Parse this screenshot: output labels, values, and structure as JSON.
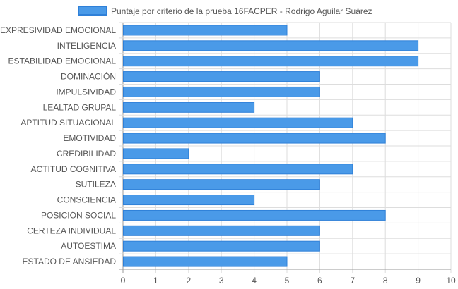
{
  "chart_data": {
    "type": "bar",
    "orientation": "horizontal",
    "legend": {
      "label": "Puntaje por criterio de la prueba 16FACPER - Rodrigo Aguilar Suárez",
      "position": "top"
    },
    "categories": [
      "EXPRESIVIDAD EMOCIONAL",
      "INTELIGENCIA",
      "ESTABILIDAD EMOCIONAL",
      "DOMINACIÓN",
      "IMPULSIVIDAD",
      "LEALTAD GRUPAL",
      "APTITUD SITUACIONAL",
      "EMOTIVIDAD",
      "CREDIBILIDAD",
      "ACTITUD COGNITIVA",
      "SUTILEZA",
      "CONSCIENCIA",
      "POSICIÓN SOCIAL",
      "CERTEZA INDIVIDUAL",
      "AUTOESTIMA",
      "ESTADO DE ANSIEDAD"
    ],
    "values": [
      5,
      9,
      9,
      6,
      6,
      4,
      7,
      8,
      2,
      7,
      6,
      4,
      8,
      6,
      6,
      5
    ],
    "xlim": [
      0,
      10
    ],
    "xticks": [
      "0",
      "1",
      "2",
      "3",
      "4",
      "5",
      "6",
      "7",
      "8",
      "9",
      "10"
    ],
    "grid": true,
    "colors": {
      "bar_fill": "#4a9ae8",
      "bar_stroke": "#2f80d8",
      "grid": "#dddddd",
      "axis": "#999999"
    }
  }
}
